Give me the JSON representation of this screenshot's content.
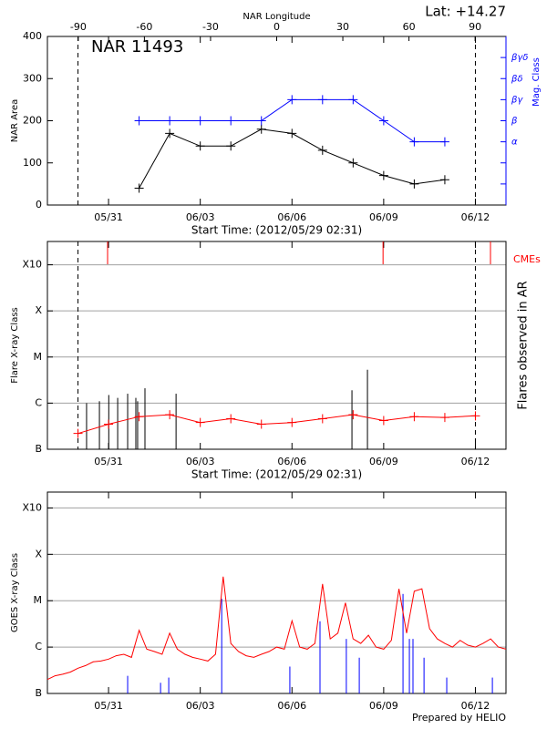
{
  "chart_data": [
    {
      "type": "line",
      "title": "NAR 11493",
      "annotation": "Lat: +14.27",
      "xlabel": "Start Time: (2012/05/29 02:31)",
      "ylabel": "NAR Area",
      "y2label": "Mag. Class",
      "x2label": "NAR Longitude",
      "xlim": [
        "05/29",
        "06/13"
      ],
      "xticks": [
        "05/31",
        "06/03",
        "06/06",
        "06/09",
        "06/12"
      ],
      "x2lim": [
        -104,
        104
      ],
      "x2ticks": [
        -90,
        -60,
        -30,
        0,
        30,
        60,
        90
      ],
      "limb_dates": [
        "05/30",
        "06/12"
      ],
      "ylim": [
        0,
        400
      ],
      "yticks": [
        0,
        100,
        200,
        300,
        400
      ],
      "y2lim": [
        0,
        8
      ],
      "y2ticks": [
        {
          "value": 1,
          "label": null
        },
        {
          "value": 2,
          "label": null
        },
        {
          "value": 3,
          "label": "α"
        },
        {
          "value": 4,
          "label": "β"
        },
        {
          "value": 5,
          "label": "βγ"
        },
        {
          "value": 6,
          "label": "βδ"
        },
        {
          "value": 7,
          "label": "βγδ"
        }
      ],
      "markers": true,
      "x": [
        "06/01",
        "06/02",
        "06/03",
        "06/04",
        "06/05",
        "06/06",
        "06/07",
        "06/08",
        "06/09",
        "06/10",
        "06/11"
      ],
      "series": [
        {
          "color": "#000000",
          "values": [
            40,
            170,
            140,
            140,
            180,
            170,
            130,
            100,
            70,
            50,
            60
          ]
        },
        {
          "color": "#0000ff",
          "axis": "y2",
          "values": [
            4,
            4,
            4,
            4,
            4,
            5,
            5,
            5,
            4,
            3,
            3
          ]
        }
      ]
    },
    {
      "type": "flares",
      "xlabel": "Start Time: (2012/05/29 02:31)",
      "ylabel": "Flare X-ray Class",
      "y2label": "Flares observed in AR",
      "xlim": [
        "05/29",
        "06/13"
      ],
      "xticks": [
        "05/31",
        "06/03",
        "06/06",
        "06/09",
        "06/12"
      ],
      "limb_dates": [
        "05/30",
        "06/12"
      ],
      "log": true,
      "grid": true,
      "ylim": [
        1e-07,
        0.0032
      ],
      "yticks": [
        {
          "value": 1e-07,
          "label": "B"
        },
        {
          "value": 1e-06,
          "label": "C"
        },
        {
          "value": 1e-05,
          "label": "M"
        },
        {
          "value": 0.0001,
          "label": "X"
        },
        {
          "value": 0.001,
          "label": "X10"
        }
      ],
      "markers": true,
      "x": [
        "05/30",
        "05/31",
        "06/01",
        "06/02",
        "06/03",
        "06/04",
        "06/05",
        "06/06",
        "06/07",
        "06/08",
        "06/09",
        "06/10",
        "06/11",
        "06/12"
      ],
      "series": [
        {
          "color": "#ff0000",
          "values": [
            2.2e-07,
            3.5e-07,
            5.1e-07,
            5.6e-07,
            3.8e-07,
            4.6e-07,
            3.5e-07,
            3.8e-07,
            4.6e-07,
            5.6e-07,
            4.2e-07,
            5.1e-07,
            4.9e-07,
            5.3e-07
          ]
        }
      ],
      "flares": {
        "color": "#000000",
        "x": [
          "05/30 06:45",
          "05/30 16:50",
          "05/31 00:10",
          "05/31 07:10",
          "05/31 15:00",
          "05/31 21:25",
          "05/31 22:50",
          "06/01 04:35",
          "06/02 05:00",
          "06/07 23:05",
          "06/08 11:15"
        ],
        "values": [
          1e-06,
          1.1e-06,
          1.5e-06,
          1.3e-06,
          1.6e-06,
          1.3e-06,
          1.1e-06,
          2.1e-06,
          1.6e-06,
          1.9e-06,
          5.3e-06
        ]
      },
      "cmes": {
        "name": "CMEs",
        "color": "#ff0000",
        "x": [
          "05/30 23:15",
          "06/08 23:30",
          "06/12 11:50"
        ]
      }
    },
    {
      "type": "goes",
      "ylabel": "GOES X-ray Class",
      "note": "Prepared by HELIO",
      "xlim": [
        "05/29",
        "06/13"
      ],
      "xticks": [
        "05/31",
        "06/03",
        "06/06",
        "06/09",
        "06/12"
      ],
      "log": true,
      "grid": true,
      "ylim": [
        1e-07,
        0.0022
      ],
      "yticks": [
        {
          "value": 1e-07,
          "label": "B"
        },
        {
          "value": 1e-06,
          "label": "C"
        },
        {
          "value": 1e-05,
          "label": "M"
        },
        {
          "value": 0.0001,
          "label": "X"
        },
        {
          "value": 0.001,
          "label": "X10"
        }
      ],
      "markers": false,
      "x": [
        "05/29 00:00",
        "05/29 06:00",
        "05/29 12:00",
        "05/29 18:00",
        "05/30 00:00",
        "05/30 06:00",
        "05/30 12:00",
        "05/30 18:00",
        "05/31 00:00",
        "05/31 06:00",
        "05/31 12:00",
        "05/31 18:00",
        "06/01 00:00",
        "06/01 06:00",
        "06/01 12:00",
        "06/01 18:00",
        "06/02 00:00",
        "06/02 06:00",
        "06/02 12:00",
        "06/02 18:00",
        "06/03 00:00",
        "06/03 06:00",
        "06/03 12:00",
        "06/03 18:00",
        "06/04 00:00",
        "06/04 06:00",
        "06/04 12:00",
        "06/04 18:00",
        "06/05 00:00",
        "06/05 06:00",
        "06/05 12:00",
        "06/05 18:00",
        "06/06 00:00",
        "06/06 06:00",
        "06/06 12:00",
        "06/06 18:00",
        "06/07 00:00",
        "06/07 06:00",
        "06/07 12:00",
        "06/07 18:00",
        "06/08 00:00",
        "06/08 06:00",
        "06/08 12:00",
        "06/08 18:00",
        "06/09 00:00",
        "06/09 06:00",
        "06/09 12:00",
        "06/09 18:00",
        "06/10 00:00",
        "06/10 06:00",
        "06/10 12:00",
        "06/10 18:00",
        "06/11 00:00",
        "06/11 06:00",
        "06/11 12:00",
        "06/11 18:00",
        "06/12 00:00",
        "06/12 06:00",
        "06/12 12:00",
        "06/12 18:00",
        "06/13 00:00"
      ],
      "series": [
        {
          "color": "#ff0000",
          "values": [
            2e-07,
            2.4e-07,
            2.6e-07,
            2.9e-07,
            3.5e-07,
            4e-07,
            4.8e-07,
            5e-07,
            5.5e-07,
            6.5e-07,
            7e-07,
            6e-07,
            2.3e-06,
            9e-07,
            8e-07,
            7e-07,
            2e-06,
            9e-07,
            7e-07,
            6e-07,
            5.5e-07,
            5e-07,
            7e-07,
            3.3e-05,
            1.2e-06,
            8e-07,
            6.5e-07,
            6e-07,
            7e-07,
            8e-07,
            1e-06,
            9e-07,
            3.7e-06,
            1e-06,
            9e-07,
            1.2e-06,
            2.3e-05,
            1.5e-06,
            2e-06,
            9e-06,
            1.5e-06,
            1.2e-06,
            1.8e-06,
            1e-06,
            9e-07,
            1.4e-06,
            1.8e-05,
            2e-06,
            1.6e-05,
            1.8e-05,
            2.5e-06,
            1.5e-06,
            1.2e-06,
            1e-06,
            1.4e-06,
            1.1e-06,
            1e-06,
            1.2e-06,
            1.5e-06,
            1e-06,
            9e-07
          ]
        }
      ],
      "flares": {
        "color": "#0000ff",
        "x": [
          "05/31 15:00",
          "06/01 16:50",
          "06/01 23:15",
          "06/03 16:50",
          "06/05 22:20",
          "06/06 22:00",
          "06/07 18:40",
          "06/08 04:50",
          "06/09 15:10",
          "06/09 20:10",
          "06/09 23:00",
          "06/10 07:40",
          "06/11 01:30",
          "06/12 13:20"
        ],
        "values": [
          2.4e-07,
          1.7e-07,
          2.2e-07,
          1.1e-05,
          3.8e-07,
          3.6e-06,
          1.5e-06,
          5.9e-07,
          1.4e-05,
          1.5e-06,
          1.5e-06,
          5.9e-07,
          2.2e-07,
          2.2e-07
        ]
      }
    }
  ]
}
